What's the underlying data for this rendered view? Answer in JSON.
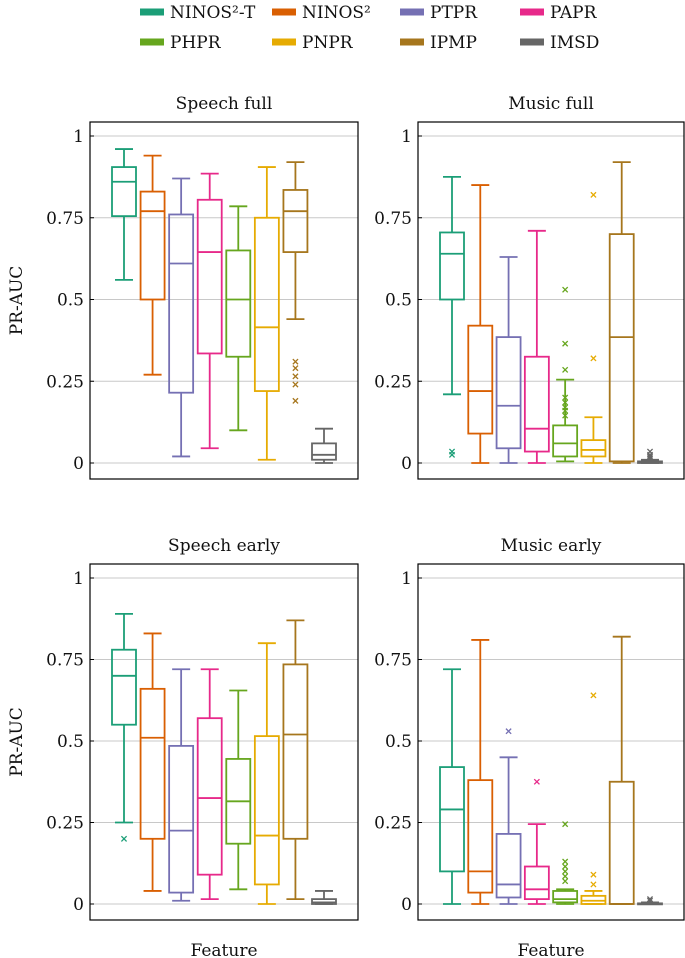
{
  "legend": {
    "items": [
      {
        "label": "NINOS²-T",
        "color": "#1b9e77"
      },
      {
        "label": "NINOS²",
        "color": "#d95f02"
      },
      {
        "label": "PTPR",
        "color": "#7570b3"
      },
      {
        "label": "PAPR",
        "color": "#e7298a"
      },
      {
        "label": "PHPR",
        "color": "#66a61e"
      },
      {
        "label": "PNPR",
        "color": "#e6ab02"
      },
      {
        "label": "IPMP",
        "color": "#a6761d"
      },
      {
        "label": "IMSD",
        "color": "#666666"
      }
    ]
  },
  "chart_data": [
    {
      "type": "box",
      "title": "Speech full",
      "xlabel": "",
      "ylabel": "PR-AUC",
      "ylim": [
        0,
        1
      ],
      "yticks": [
        0,
        0.25,
        0.5,
        0.75,
        1
      ],
      "ytick_labels": [
        "0",
        "0.25",
        "0.5",
        "0.75",
        "1"
      ],
      "grid": true,
      "series": [
        {
          "name": "NINOS²-T",
          "whislo": 0.56,
          "q1": 0.755,
          "med": 0.86,
          "q3": 0.905,
          "whishi": 0.96,
          "outliers": []
        },
        {
          "name": "NINOS²",
          "whislo": 0.27,
          "q1": 0.5,
          "med": 0.77,
          "q3": 0.83,
          "whishi": 0.94,
          "outliers": []
        },
        {
          "name": "PTPR",
          "whislo": 0.02,
          "q1": 0.215,
          "med": 0.61,
          "q3": 0.76,
          "whishi": 0.87,
          "outliers": []
        },
        {
          "name": "PAPR",
          "whislo": 0.045,
          "q1": 0.335,
          "med": 0.645,
          "q3": 0.805,
          "whishi": 0.885,
          "outliers": []
        },
        {
          "name": "PHPR",
          "whislo": 0.1,
          "q1": 0.325,
          "med": 0.5,
          "q3": 0.65,
          "whishi": 0.785,
          "outliers": []
        },
        {
          "name": "PNPR",
          "whislo": 0.01,
          "q1": 0.22,
          "med": 0.415,
          "q3": 0.75,
          "whishi": 0.905,
          "outliers": []
        },
        {
          "name": "IPMP",
          "whislo": 0.44,
          "q1": 0.645,
          "med": 0.77,
          "q3": 0.835,
          "whishi": 0.92,
          "outliers": [
            0.31,
            0.29,
            0.265,
            0.24,
            0.19
          ]
        },
        {
          "name": "IMSD",
          "whislo": 0.0,
          "q1": 0.01,
          "med": 0.025,
          "q3": 0.06,
          "whishi": 0.105,
          "outliers": []
        }
      ]
    },
    {
      "type": "box",
      "title": "Music full",
      "xlabel": "",
      "ylabel": "",
      "ylim": [
        0,
        1
      ],
      "yticks": [
        0,
        0.25,
        0.5,
        0.75,
        1
      ],
      "ytick_labels": [
        "0",
        "0.25",
        "0.5",
        "0.75",
        "1"
      ],
      "grid": true,
      "series": [
        {
          "name": "NINOS²-T",
          "whislo": 0.21,
          "q1": 0.5,
          "med": 0.64,
          "q3": 0.705,
          "whishi": 0.875,
          "outliers": [
            0.035,
            0.025
          ]
        },
        {
          "name": "NINOS²",
          "whislo": 0.0,
          "q1": 0.09,
          "med": 0.22,
          "q3": 0.42,
          "whishi": 0.85,
          "outliers": []
        },
        {
          "name": "PTPR",
          "whislo": 0.0,
          "q1": 0.045,
          "med": 0.175,
          "q3": 0.385,
          "whishi": 0.63,
          "outliers": []
        },
        {
          "name": "PAPR",
          "whislo": 0.0,
          "q1": 0.035,
          "med": 0.105,
          "q3": 0.325,
          "whishi": 0.71,
          "outliers": []
        },
        {
          "name": "PHPR",
          "whislo": 0.005,
          "q1": 0.02,
          "med": 0.06,
          "q3": 0.115,
          "whishi": 0.255,
          "outliers": [
            0.53,
            0.365,
            0.285,
            0.2,
            0.185,
            0.17,
            0.16,
            0.145
          ]
        },
        {
          "name": "PNPR",
          "whislo": 0.0,
          "q1": 0.02,
          "med": 0.04,
          "q3": 0.07,
          "whishi": 0.14,
          "outliers": [
            0.82,
            0.32
          ]
        },
        {
          "name": "IPMP",
          "whislo": 0.0,
          "q1": 0.005,
          "med": 0.385,
          "q3": 0.7,
          "whishi": 0.92,
          "outliers": []
        },
        {
          "name": "IMSD",
          "whislo": 0.0,
          "q1": 0.0,
          "med": 0.002,
          "q3": 0.005,
          "whishi": 0.01,
          "outliers": [
            0.035,
            0.025,
            0.02,
            0.015
          ]
        }
      ]
    },
    {
      "type": "box",
      "title": "Speech early",
      "xlabel": "Feature",
      "ylabel": "PR-AUC",
      "ylim": [
        0,
        1
      ],
      "yticks": [
        0,
        0.25,
        0.5,
        0.75,
        1
      ],
      "ytick_labels": [
        "0",
        "0.25",
        "0.5",
        "0.75",
        "1"
      ],
      "grid": true,
      "series": [
        {
          "name": "NINOS²-T",
          "whislo": 0.25,
          "q1": 0.55,
          "med": 0.7,
          "q3": 0.78,
          "whishi": 0.89,
          "outliers": [
            0.2
          ]
        },
        {
          "name": "NINOS²",
          "whislo": 0.04,
          "q1": 0.2,
          "med": 0.51,
          "q3": 0.66,
          "whishi": 0.83,
          "outliers": []
        },
        {
          "name": "PTPR",
          "whislo": 0.01,
          "q1": 0.035,
          "med": 0.225,
          "q3": 0.485,
          "whishi": 0.72,
          "outliers": []
        },
        {
          "name": "PAPR",
          "whislo": 0.015,
          "q1": 0.09,
          "med": 0.325,
          "q3": 0.57,
          "whishi": 0.72,
          "outliers": []
        },
        {
          "name": "PHPR",
          "whislo": 0.045,
          "q1": 0.185,
          "med": 0.315,
          "q3": 0.445,
          "whishi": 0.655,
          "outliers": []
        },
        {
          "name": "PNPR",
          "whislo": 0.0,
          "q1": 0.06,
          "med": 0.21,
          "q3": 0.515,
          "whishi": 0.8,
          "outliers": []
        },
        {
          "name": "IPMP",
          "whislo": 0.015,
          "q1": 0.2,
          "med": 0.52,
          "q3": 0.735,
          "whishi": 0.87,
          "outliers": []
        },
        {
          "name": "IMSD",
          "whislo": 0.0,
          "q1": 0.0,
          "med": 0.005,
          "q3": 0.015,
          "whishi": 0.04,
          "outliers": []
        }
      ]
    },
    {
      "type": "box",
      "title": "Music early",
      "xlabel": "Feature",
      "ylabel": "",
      "ylim": [
        0,
        1
      ],
      "yticks": [
        0,
        0.25,
        0.5,
        0.75,
        1
      ],
      "ytick_labels": [
        "0",
        "0.25",
        "0.5",
        "0.75",
        "1"
      ],
      "grid": true,
      "series": [
        {
          "name": "NINOS²-T",
          "whislo": 0.0,
          "q1": 0.1,
          "med": 0.29,
          "q3": 0.42,
          "whishi": 0.72,
          "outliers": []
        },
        {
          "name": "NINOS²",
          "whislo": 0.0,
          "q1": 0.035,
          "med": 0.1,
          "q3": 0.38,
          "whishi": 0.81,
          "outliers": []
        },
        {
          "name": "PTPR",
          "whislo": 0.0,
          "q1": 0.02,
          "med": 0.06,
          "q3": 0.215,
          "whishi": 0.45,
          "outliers": [
            0.53
          ]
        },
        {
          "name": "PAPR",
          "whislo": 0.0,
          "q1": 0.015,
          "med": 0.045,
          "q3": 0.115,
          "whishi": 0.245,
          "outliers": [
            0.375
          ]
        },
        {
          "name": "PHPR",
          "whislo": 0.0,
          "q1": 0.005,
          "med": 0.015,
          "q3": 0.04,
          "whishi": 0.045,
          "outliers": [
            0.245,
            0.13,
            0.115,
            0.1,
            0.085,
            0.07
          ]
        },
        {
          "name": "PNPR",
          "whislo": 0.0,
          "q1": 0.0,
          "med": 0.01,
          "q3": 0.025,
          "whishi": 0.04,
          "outliers": [
            0.64,
            0.09,
            0.06
          ]
        },
        {
          "name": "IPMP",
          "whislo": 0.0,
          "q1": 0.0,
          "med": 0.0,
          "q3": 0.375,
          "whishi": 0.82,
          "outliers": []
        },
        {
          "name": "IMSD",
          "whislo": 0.0,
          "q1": 0.0,
          "med": 0.0,
          "q3": 0.002,
          "whishi": 0.005,
          "outliers": [
            0.015,
            0.01
          ]
        }
      ]
    }
  ]
}
